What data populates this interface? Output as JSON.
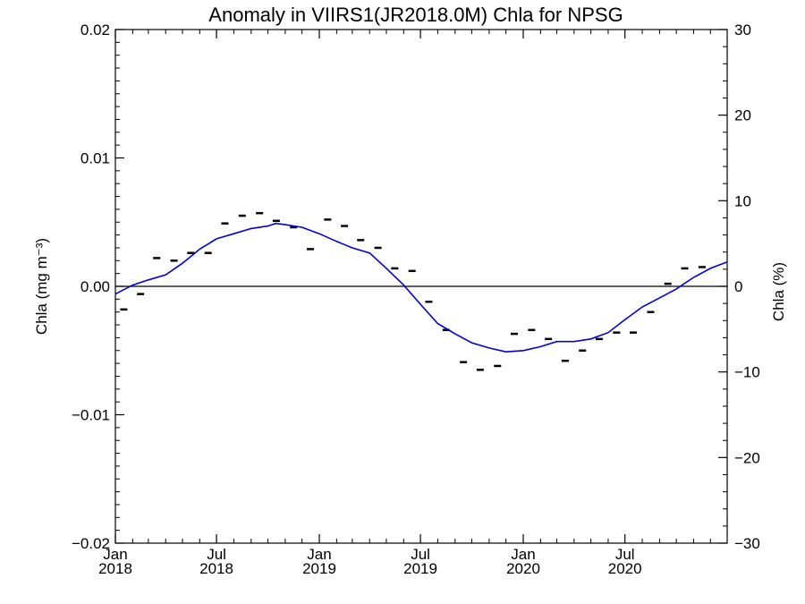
{
  "chart_data": {
    "type": "line",
    "title": "Anomaly in VIIRS1(JR2018.0M) Chla for NPSG",
    "ylabel_left": "Chla (mg m⁻³)",
    "ylabel_right": "Chla (%)",
    "xlabel": "",
    "xlim": [
      "2018-01-01",
      "2020-12-31"
    ],
    "ylim_left": [
      -0.02,
      0.02
    ],
    "ylim_right": [
      -30,
      30
    ],
    "yticks_left": [
      "0.02",
      "0.01",
      "0.00",
      "−0.01",
      "−0.02"
    ],
    "yticks_right": [
      "30",
      "20",
      "10",
      "0",
      "−10",
      "−20",
      "−30"
    ],
    "xticks": [
      {
        "month": "Jan",
        "year": "2018",
        "date": "2018-01-01"
      },
      {
        "month": "Jul",
        "year": "2018",
        "date": "2018-07-01"
      },
      {
        "month": "Jan",
        "year": "2019",
        "date": "2019-01-01"
      },
      {
        "month": "Jul",
        "year": "2019",
        "date": "2019-07-01"
      },
      {
        "month": "Jan",
        "year": "2020",
        "date": "2020-01-01"
      },
      {
        "month": "Jul",
        "year": "2020",
        "date": "2020-07-01"
      }
    ],
    "grid": false,
    "colors": {
      "fit_line": "#0000dd",
      "monthly_marks": "#000000",
      "zero_line": "#000000"
    },
    "series": [
      {
        "style": "marks",
        "points": [
          [
            "2018-01-16",
            -0.0018
          ],
          [
            "2018-02-15",
            -0.0006
          ],
          [
            "2018-03-16",
            0.0022
          ],
          [
            "2018-04-16",
            0.002
          ],
          [
            "2018-05-16",
            0.0026
          ],
          [
            "2018-06-16",
            0.0026
          ],
          [
            "2018-07-16",
            0.0049
          ],
          [
            "2018-08-16",
            0.0055
          ],
          [
            "2018-09-16",
            0.0057
          ],
          [
            "2018-10-16",
            0.0051
          ],
          [
            "2018-11-16",
            0.0046
          ],
          [
            "2018-12-16",
            0.0029
          ],
          [
            "2019-01-16",
            0.0052
          ],
          [
            "2019-02-15",
            0.0047
          ],
          [
            "2019-03-16",
            0.0036
          ],
          [
            "2019-04-16",
            0.003
          ],
          [
            "2019-05-16",
            0.0014
          ],
          [
            "2019-06-16",
            0.0012
          ],
          [
            "2019-07-16",
            -0.0012
          ],
          [
            "2019-08-16",
            -0.0034
          ],
          [
            "2019-09-16",
            -0.0059
          ],
          [
            "2019-10-16",
            -0.0065
          ],
          [
            "2019-11-16",
            -0.0062
          ],
          [
            "2019-12-16",
            -0.0037
          ],
          [
            "2020-01-16",
            -0.0034
          ],
          [
            "2020-02-15",
            -0.0041
          ],
          [
            "2020-03-16",
            -0.0058
          ],
          [
            "2020-04-16",
            -0.005
          ],
          [
            "2020-05-16",
            -0.0041
          ],
          [
            "2020-06-16",
            -0.0036
          ],
          [
            "2020-07-16",
            -0.0036
          ],
          [
            "2020-08-16",
            -0.002
          ],
          [
            "2020-09-16",
            0.0002
          ],
          [
            "2020-10-16",
            0.0014
          ],
          [
            "2020-11-16",
            0.0015
          ]
        ]
      },
      {
        "style": "line",
        "points": [
          [
            "2018-01-01",
            -0.0006
          ],
          [
            "2018-02-01",
            0.0001
          ],
          [
            "2018-03-01",
            0.0005
          ],
          [
            "2018-04-01",
            0.0009
          ],
          [
            "2018-05-01",
            0.0018
          ],
          [
            "2018-06-01",
            0.0029
          ],
          [
            "2018-07-01",
            0.0037
          ],
          [
            "2018-08-01",
            0.0041
          ],
          [
            "2018-09-01",
            0.0045
          ],
          [
            "2018-10-01",
            0.0047
          ],
          [
            "2018-10-15",
            0.0049
          ],
          [
            "2018-11-01",
            0.0048
          ],
          [
            "2018-12-01",
            0.0046
          ],
          [
            "2019-01-01",
            0.0041
          ],
          [
            "2019-02-01",
            0.0035
          ],
          [
            "2019-03-01",
            0.003
          ],
          [
            "2019-04-01",
            0.0026
          ],
          [
            "2019-05-01",
            0.0014
          ],
          [
            "2019-06-01",
            0.0001
          ],
          [
            "2019-07-01",
            -0.0014
          ],
          [
            "2019-08-01",
            -0.0029
          ],
          [
            "2019-09-01",
            -0.0037
          ],
          [
            "2019-10-01",
            -0.0044
          ],
          [
            "2019-11-01",
            -0.0048
          ],
          [
            "2019-12-01",
            -0.0051
          ],
          [
            "2020-01-01",
            -0.005
          ],
          [
            "2020-02-01",
            -0.0047
          ],
          [
            "2020-03-01",
            -0.0043
          ],
          [
            "2020-04-01",
            -0.0043
          ],
          [
            "2020-05-01",
            -0.0041
          ],
          [
            "2020-06-01",
            -0.0036
          ],
          [
            "2020-07-01",
            -0.0026
          ],
          [
            "2020-08-01",
            -0.0016
          ],
          [
            "2020-09-01",
            -0.0009
          ],
          [
            "2020-10-01",
            -0.0002
          ],
          [
            "2020-11-01",
            0.0007
          ],
          [
            "2020-12-01",
            0.0014
          ],
          [
            "2020-12-31",
            0.0019
          ]
        ]
      }
    ]
  }
}
